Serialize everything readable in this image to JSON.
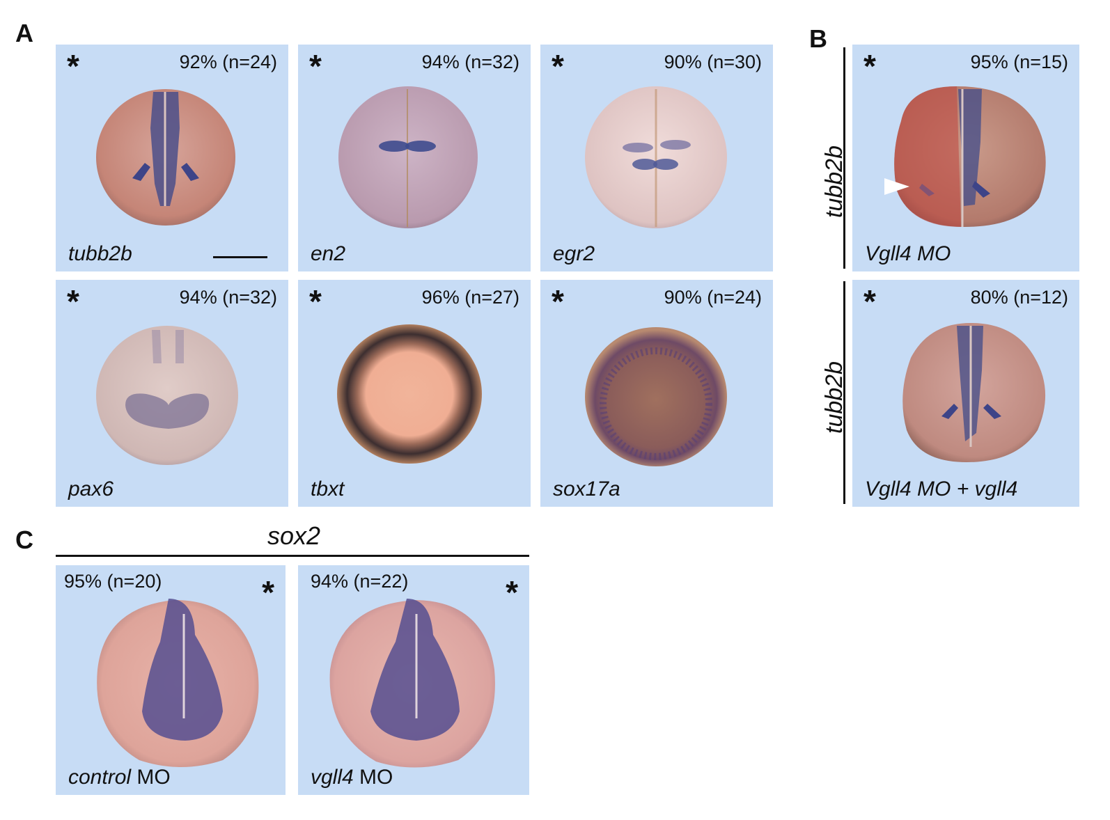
{
  "sections": {
    "a": "A",
    "b": "B",
    "c": "C"
  },
  "panelA": [
    {
      "gene": "tubb2b",
      "percent": "92% (n=24)",
      "star": "*"
    },
    {
      "gene": "en2",
      "percent": "94% (n=32)",
      "star": "*"
    },
    {
      "gene": "egr2",
      "percent": "90% (n=30)",
      "star": "*"
    },
    {
      "gene": "pax6",
      "percent": "94% (n=32)",
      "star": "*"
    },
    {
      "gene": "tbxt",
      "percent": "96% (n=27)",
      "star": "*"
    },
    {
      "gene": "sox17a",
      "percent": "90% (n=24)",
      "star": "*"
    }
  ],
  "panelB": {
    "side_label_top": "tubb2b",
    "side_label_bottom": "tubb2b",
    "panels": [
      {
        "label": "Vgll4 MO",
        "percent": "95% (n=15)",
        "star": "*"
      },
      {
        "label": "Vgll4 MO + vgll4",
        "percent": "80% (n=12)",
        "star": "*"
      }
    ]
  },
  "panelC": {
    "title": "sox2",
    "panels": [
      {
        "label_italic": "control",
        "label_plain": " MO",
        "percent": "95% (n=20)",
        "star": "*"
      },
      {
        "label_italic": "vgll4",
        "label_plain": " MO",
        "percent": "94% (n=22)",
        "star": "*"
      }
    ]
  }
}
